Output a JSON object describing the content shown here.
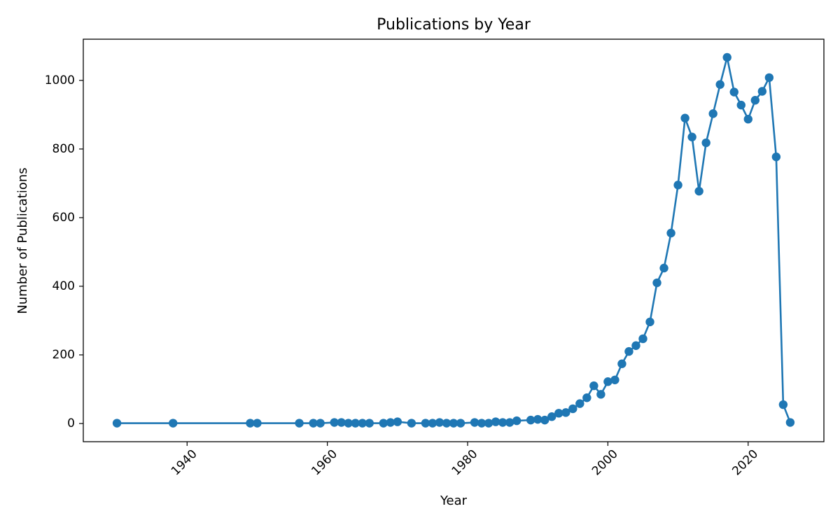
{
  "chart_data": {
    "type": "line",
    "title": "Publications by Year",
    "xlabel": "Year",
    "ylabel": "Number of Publications",
    "xlim": [
      1925.2,
      2030.8
    ],
    "ylim": [
      -53,
      1120
    ],
    "xticks": [
      1940,
      1960,
      1980,
      2000,
      2020
    ],
    "yticks": [
      0,
      200,
      400,
      600,
      800,
      1000
    ],
    "grid": false,
    "legend": "none",
    "series": [
      {
        "color": "#1f77b4",
        "marker": "circle",
        "x": [
          1930,
          1938,
          1949,
          1950,
          1956,
          1958,
          1959,
          1961,
          1962,
          1963,
          1964,
          1965,
          1966,
          1968,
          1969,
          1970,
          1972,
          1974,
          1975,
          1976,
          1977,
          1978,
          1979,
          1981,
          1982,
          1983,
          1984,
          1985,
          1986,
          1987,
          1989,
          1990,
          1991,
          1992,
          1993,
          1994,
          1995,
          1996,
          1997,
          1998,
          1999,
          2000,
          2001,
          2002,
          2003,
          2004,
          2005,
          2006,
          2007,
          2008,
          2009,
          2010,
          2011,
          2012,
          2013,
          2014,
          2015,
          2016,
          2017,
          2018,
          2019,
          2020,
          2021,
          2022,
          2023,
          2024,
          2025,
          2026
        ],
        "y": [
          1,
          1,
          1,
          1,
          1,
          1,
          1,
          3,
          3,
          1,
          1,
          1,
          1,
          1,
          3,
          5,
          1,
          1,
          1,
          3,
          1,
          1,
          1,
          3,
          1,
          1,
          5,
          3,
          3,
          8,
          10,
          12,
          10,
          20,
          30,
          32,
          43,
          58,
          75,
          110,
          85,
          122,
          127,
          174,
          210,
          227,
          247,
          296,
          410,
          453,
          555,
          695,
          890,
          835,
          677,
          818,
          903,
          988,
          1067,
          966,
          928,
          887,
          942,
          968,
          1008,
          777,
          55,
          3
        ]
      }
    ]
  }
}
